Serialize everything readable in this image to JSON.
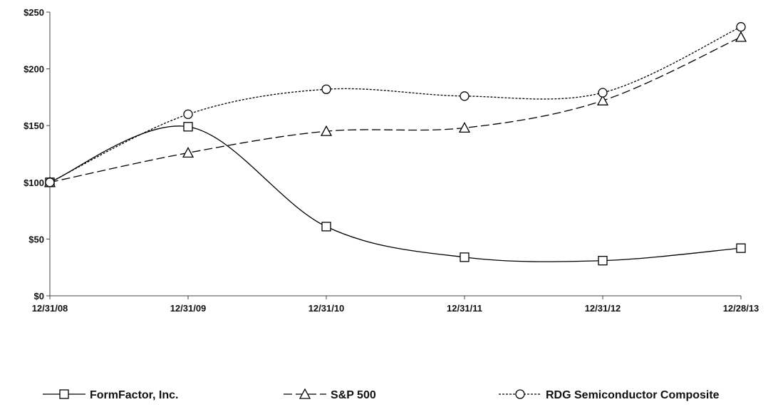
{
  "chart_data": {
    "type": "line",
    "categories": [
      "12/31/08",
      "12/31/09",
      "12/31/10",
      "12/31/11",
      "12/31/12",
      "12/28/13"
    ],
    "ylim": [
      0,
      250
    ],
    "yticks": [
      0,
      50,
      100,
      150,
      200,
      250
    ],
    "ytick_labels": [
      "$0",
      "$50",
      "$100",
      "$150",
      "$200",
      "$250"
    ],
    "grid": false,
    "legend_position": "bottom",
    "series": [
      {
        "name": "FormFactor, Inc.",
        "values": [
          100,
          149,
          61,
          34,
          31,
          42
        ],
        "marker": "square",
        "dash": "solid",
        "color": "#000000"
      },
      {
        "name": "S&P 500",
        "values": [
          100,
          126,
          145,
          148,
          172,
          228
        ],
        "marker": "triangle",
        "dash": "long-dash",
        "color": "#000000"
      },
      {
        "name": "RDG Semiconductor Composite",
        "values": [
          100,
          160,
          182,
          176,
          179,
          237
        ],
        "marker": "circle",
        "dash": "dotted",
        "color": "#000000"
      }
    ]
  }
}
